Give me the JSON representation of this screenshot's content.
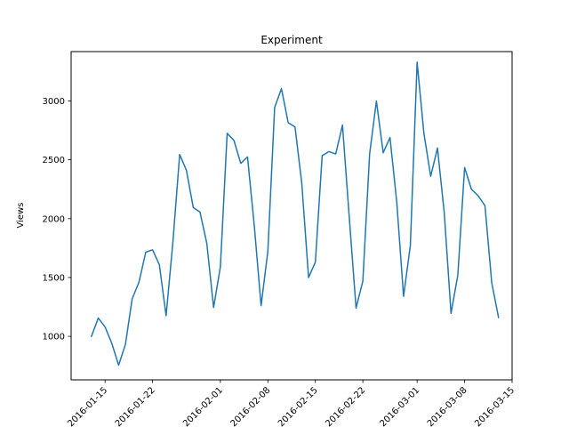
{
  "chart_data": {
    "type": "line",
    "title": "Experiment",
    "xlabel": "",
    "ylabel": "Views",
    "x_tick_labels": [
      "2016-01-15",
      "2016-01-22",
      "2016-02-01",
      "2016-02-08",
      "2016-02-15",
      "2016-02-22",
      "2016-03-01",
      "2016-03-08",
      "2016-03-15"
    ],
    "y_ticks": [
      1000,
      1500,
      2000,
      2500,
      3000
    ],
    "ylim": [
      630,
      3420
    ],
    "xlim": [
      "2016-01-10",
      "2016-03-15"
    ],
    "grid": false,
    "colors": {
      "line": "#1f77b4"
    },
    "series": [
      {
        "x": [
          "2016-01-13",
          "2016-01-14",
          "2016-01-15",
          "2016-01-16",
          "2016-01-17",
          "2016-01-18",
          "2016-01-19",
          "2016-01-20",
          "2016-01-21",
          "2016-01-22",
          "2016-01-23",
          "2016-01-24",
          "2016-01-25",
          "2016-01-26",
          "2016-01-27",
          "2016-01-28",
          "2016-01-29",
          "2016-01-30",
          "2016-01-31",
          "2016-02-01",
          "2016-02-02",
          "2016-02-03",
          "2016-02-04",
          "2016-02-05",
          "2016-02-06",
          "2016-02-07",
          "2016-02-08",
          "2016-02-09",
          "2016-02-10",
          "2016-02-11",
          "2016-02-12",
          "2016-02-13",
          "2016-02-14",
          "2016-02-15",
          "2016-02-16",
          "2016-02-17",
          "2016-02-18",
          "2016-02-19",
          "2016-02-20",
          "2016-02-21",
          "2016-02-22",
          "2016-02-23",
          "2016-02-24",
          "2016-02-25",
          "2016-02-26",
          "2016-02-27",
          "2016-02-28",
          "2016-02-29",
          "2016-03-01",
          "2016-03-02",
          "2016-03-03",
          "2016-03-04",
          "2016-03-05",
          "2016-03-06",
          "2016-03-07",
          "2016-03-08",
          "2016-03-09",
          "2016-03-10",
          "2016-03-11",
          "2016-03-12",
          "2016-03-13"
        ],
        "values": [
          1000,
          1155,
          1080,
          940,
          755,
          930,
          1320,
          1460,
          1715,
          1735,
          1610,
          1175,
          1800,
          2545,
          2410,
          2095,
          2055,
          1790,
          1245,
          1590,
          2725,
          2665,
          2470,
          2525,
          1940,
          1260,
          1725,
          2945,
          3105,
          2815,
          2780,
          2300,
          1500,
          1630,
          2535,
          2570,
          2550,
          2795,
          2010,
          1240,
          1470,
          2550,
          3000,
          2560,
          2690,
          2140,
          1340,
          1770,
          3330,
          2725,
          2360,
          2600,
          2050,
          1195,
          1520,
          2435,
          2250,
          2195,
          2110,
          1455,
          1160
        ]
      }
    ]
  }
}
